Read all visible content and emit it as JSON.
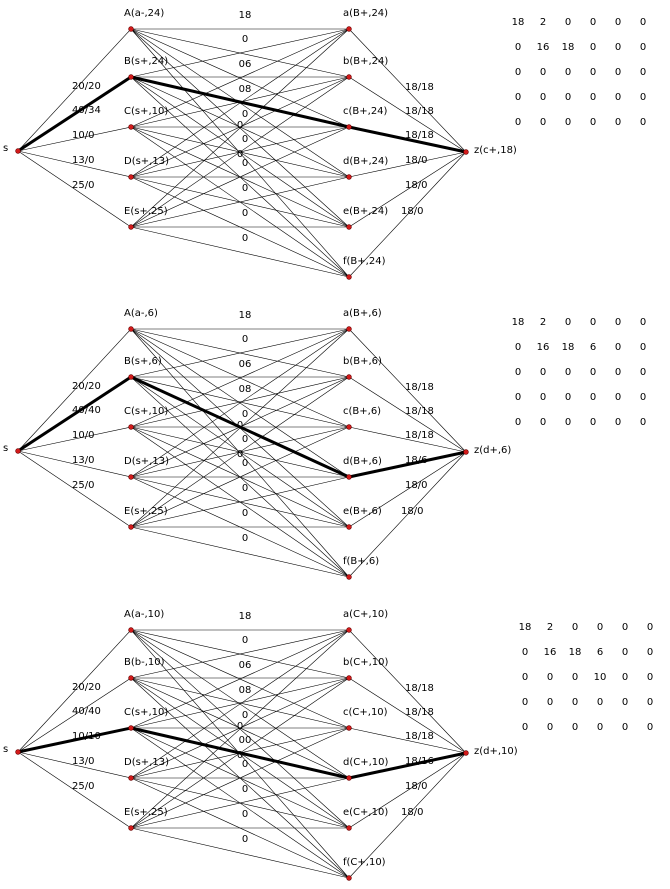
{
  "panels": [
    {
      "source_label": "s",
      "sink_label": "z(c+,18)",
      "left_labels": [
        "A(a-,24)",
        "B(s+,24)",
        "C(s+,10)",
        "D(s+,13)",
        "E(s+,25)"
      ],
      "right_labels": [
        "a(B+,24)",
        "b(B+,24)",
        "c(B+,24)",
        "d(B+,24)",
        "e(B+,24)",
        "f(B+,24)"
      ],
      "source_flows": [
        "20/20",
        "40/34",
        "10/0",
        "13/0",
        "25/0"
      ],
      "sink_flows": [
        "18/18",
        "18/18",
        "18/18",
        "18/0",
        "18/0",
        "18/0"
      ],
      "middle_labels": [
        "18",
        "0",
        "06",
        "08",
        "0",
        "0",
        "0",
        "0",
        "0",
        "0",
        "0",
        "0"
      ],
      "path": [
        "B",
        "c"
      ],
      "matrix": [
        [
          "18",
          "2",
          "0",
          "0",
          "0",
          "0"
        ],
        [
          "0",
          "16",
          "18",
          "0",
          "0",
          "0"
        ],
        [
          "0",
          "0",
          "0",
          "0",
          "0",
          "0"
        ],
        [
          "0",
          "0",
          "0",
          "0",
          "0",
          "0"
        ],
        [
          "0",
          "0",
          "0",
          "0",
          "0",
          "0"
        ]
      ]
    },
    {
      "source_label": "s",
      "sink_label": "z(d+,6)",
      "left_labels": [
        "A(a-,6)",
        "B(s+,6)",
        "C(s+,10)",
        "D(s+,13)",
        "E(s+,25)"
      ],
      "right_labels": [
        "a(B+,6)",
        "b(B+,6)",
        "c(B+,6)",
        "d(B+,6)",
        "e(B+,6)",
        "f(B+,6)"
      ],
      "source_flows": [
        "20/20",
        "40/40",
        "10/0",
        "13/0",
        "25/0"
      ],
      "sink_flows": [
        "18/18",
        "18/18",
        "18/18",
        "18/6",
        "18/0",
        "18/0"
      ],
      "middle_labels": [
        "18",
        "0",
        "06",
        "08",
        "0",
        "0",
        "0",
        "0",
        "0",
        "0",
        "0",
        "0"
      ],
      "path": [
        "B",
        "d"
      ],
      "matrix": [
        [
          "18",
          "2",
          "0",
          "0",
          "0",
          "0"
        ],
        [
          "0",
          "16",
          "18",
          "6",
          "0",
          "0"
        ],
        [
          "0",
          "0",
          "0",
          "0",
          "0",
          "0"
        ],
        [
          "0",
          "0",
          "0",
          "0",
          "0",
          "0"
        ],
        [
          "0",
          "0",
          "0",
          "0",
          "0",
          "0"
        ]
      ]
    },
    {
      "source_label": "s",
      "sink_label": "z(d+,10)",
      "left_labels": [
        "A(a-,10)",
        "B(b-,10)",
        "C(s+,10)",
        "D(s+,13)",
        "E(s+,25)"
      ],
      "right_labels": [
        "a(C+,10)",
        "b(C+,10)",
        "c(C+,10)",
        "d(C+,10)",
        "e(C+,10)",
        "f(C+,10)"
      ],
      "source_flows": [
        "20/20",
        "40/40",
        "10/10",
        "13/0",
        "25/0"
      ],
      "sink_flows": [
        "18/18",
        "18/18",
        "18/18",
        "18/16",
        "18/0",
        "18/0"
      ],
      "middle_labels": [
        "18",
        "0",
        "06",
        "08",
        "0",
        "00",
        "0",
        "0",
        "0",
        "0",
        "0",
        "0"
      ],
      "path": [
        "C",
        "d"
      ],
      "matrix": [
        [
          "18",
          "2",
          "0",
          "0",
          "0",
          "0"
        ],
        [
          "0",
          "16",
          "18",
          "6",
          "0",
          "0"
        ],
        [
          "0",
          "0",
          "0",
          "10",
          "0",
          "0"
        ],
        [
          "0",
          "0",
          "0",
          "0",
          "0",
          "0"
        ],
        [
          "0",
          "0",
          "0",
          "0",
          "0",
          "0"
        ]
      ]
    }
  ]
}
